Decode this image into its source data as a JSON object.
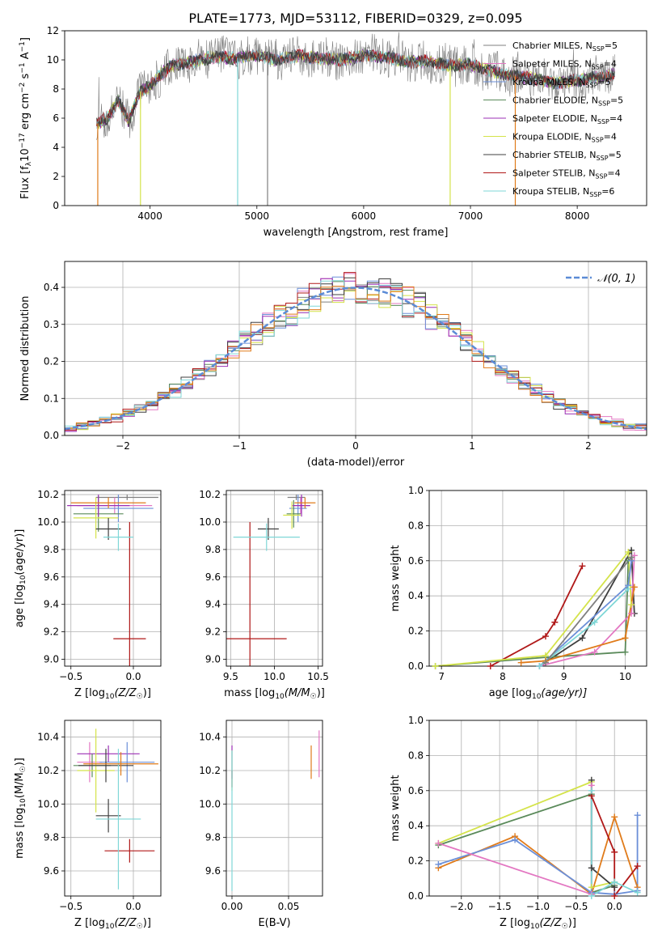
{
  "title": "PLATE=1773, MJD=53112, FIBERID=0329, z=0.095",
  "palette": {
    "chabrier_miles": "#7f7f7f",
    "salpeter_miles": "#e377c2",
    "kroupa_miles": "#6b8fd8",
    "chabrier_elodie": "#5a8a5a",
    "salpeter_elodie": "#9b30b5",
    "kroupa_elodie": "#d4e34a",
    "chabrier_stelib": "#3f3f3f",
    "salpeter_stelib": "#b01818",
    "kroupa_stelib": "#7fd7d7",
    "orange": "#e07b1a",
    "normal_curve": "#5b8bd6"
  },
  "legend_models": [
    {
      "label": "Chabrier MILES, N",
      "sub": "SSP",
      "suffix": "=5",
      "color": "#7f7f7f"
    },
    {
      "label": "Salpeter MILES, N",
      "sub": "SSP",
      "suffix": "=4",
      "color": "#e377c2"
    },
    {
      "label": "Kroupa MILES, N",
      "sub": "SSP",
      "suffix": "=5",
      "color": "#6b8fd8"
    },
    {
      "label": "Chabrier ELODIE, N",
      "sub": "SSP",
      "suffix": "=5",
      "color": "#5a8a5a"
    },
    {
      "label": "Salpeter ELODIE, N",
      "sub": "SSP",
      "suffix": "=4",
      "color": "#9b30b5"
    },
    {
      "label": "Kroupa ELODIE, N",
      "sub": "SSP",
      "suffix": "=4",
      "color": "#d4e34a"
    },
    {
      "label": "Chabrier STELIB, N",
      "sub": "SSP",
      "suffix": "=5",
      "color": "#3f3f3f"
    },
    {
      "label": "Salpeter STELIB, N",
      "sub": "SSP",
      "suffix": "=4",
      "color": "#b01818"
    },
    {
      "label": "Kroupa STELIB, N",
      "sub": "SSP",
      "suffix": "=6",
      "color": "#7fd7d7"
    }
  ],
  "chart_data": [
    {
      "id": "spectrum",
      "type": "line",
      "xlabel": "wavelength [Angstrom, rest frame]",
      "ylabel": "Flux [f",
      "ylabel_sub": "λ",
      "ylabel_rest": "10",
      "ylabel_exp": "−17",
      "ylabel_units": " erg cm",
      "ylabel_exp2": "−2",
      "ylabel_units2": " s",
      "ylabel_exp3": "−1",
      "ylabel_units3": " A",
      "ylabel_exp4": "−1",
      "ylabel_end": "]",
      "xlim": [
        3200,
        8650
      ],
      "ylim": [
        0,
        12
      ],
      "xticks": [
        "4000",
        "5000",
        "6000",
        "7000",
        "8000"
      ],
      "xtick_values": [
        4000,
        5000,
        6000,
        7000,
        8000
      ],
      "yticks": [
        "0",
        "2",
        "4",
        "6",
        "8",
        "10",
        "12"
      ],
      "ytick_values": [
        0,
        2,
        4,
        6,
        8,
        10,
        12
      ],
      "continuum": {
        "x": [
          3500,
          3600,
          3700,
          3800,
          3900,
          4000,
          4100,
          4200,
          4400,
          4600,
          4800,
          5000,
          5200,
          5400,
          5600,
          5800,
          6000,
          6200,
          6400,
          6600,
          6800,
          7000,
          7200,
          7400,
          7600,
          7800,
          8000,
          8200,
          8350
        ],
        "y": [
          5.6,
          6.0,
          7.2,
          5.8,
          7.8,
          8.2,
          9.0,
          9.6,
          9.9,
          10.2,
          10.1,
          10.3,
          10.0,
          10.3,
          10.1,
          10.0,
          10.3,
          10.2,
          9.9,
          9.9,
          9.6,
          9.7,
          9.2,
          8.9,
          8.7,
          8.4,
          8.6,
          8.8,
          9.0
        ]
      },
      "drops": [
        {
          "x": 3510,
          "to": 0
        },
        {
          "x": 3910,
          "to": 0
        },
        {
          "x": 4820,
          "to": 0
        },
        {
          "x": 5100,
          "to": 0
        },
        {
          "x": 6810,
          "to": 0
        },
        {
          "x": 7420,
          "to": 0
        }
      ]
    },
    {
      "id": "residuals",
      "type": "histogram",
      "xlabel": "(data-model)/error",
      "ylabel": "Normed distribution",
      "xlim": [
        -2.5,
        2.5
      ],
      "ylim": [
        0,
        0.47
      ],
      "xticks": [
        "−2",
        "−1",
        "0",
        "1",
        "2"
      ],
      "xtick_values": [
        -2,
        -1,
        0,
        1,
        2
      ],
      "yticks": [
        "0.0",
        "0.1",
        "0.2",
        "0.3",
        "0.4"
      ],
      "ytick_values": [
        0,
        0.1,
        0.2,
        0.3,
        0.4
      ],
      "bin_width": 0.1,
      "legend": "𝒩(0, 1)"
    },
    {
      "id": "age-z",
      "type": "errorbar",
      "xlabel": "Z [log",
      "xlabel_sub": "10",
      "xlabel_rest": "(Z/Z",
      "xlabel_sun": "☉",
      "xlabel_end": ")]",
      "ylabel": "age  [log",
      "ylabel_sub": "10",
      "ylabel_rest": "(age/yr)]",
      "xlim": [
        -0.55,
        0.22
      ],
      "ylim": [
        8.95,
        10.23
      ],
      "xticks": [
        "−0.5",
        "0.0"
      ],
      "xtick_values": [
        -0.5,
        0.0
      ],
      "yticks": [
        "9.0",
        "9.2",
        "9.4",
        "9.6",
        "9.8",
        "10.0",
        "10.2"
      ],
      "ytick_values": [
        9.0,
        9.2,
        9.4,
        9.6,
        9.8,
        10.0,
        10.2
      ],
      "points": [
        {
          "x": -0.05,
          "y": 10.18,
          "xerr": 0.25,
          "yerr": 0.02,
          "color": "#7f7f7f"
        },
        {
          "x": -0.15,
          "y": 10.12,
          "xerr": 0.3,
          "yerr": 0.06,
          "color": "#e377c2"
        },
        {
          "x": -0.12,
          "y": 10.1,
          "xerr": 0.28,
          "yerr": 0.1,
          "color": "#6b8fd8"
        },
        {
          "x": -0.28,
          "y": 10.06,
          "xerr": 0.2,
          "yerr": 0.13,
          "color": "#5a8a5a"
        },
        {
          "x": -0.28,
          "y": 10.12,
          "xerr": 0.25,
          "yerr": 0.08,
          "color": "#9b30b5"
        },
        {
          "x": -0.3,
          "y": 10.03,
          "xerr": 0.18,
          "yerr": 0.15,
          "color": "#d4e34a"
        },
        {
          "x": -0.2,
          "y": 9.95,
          "xerr": 0.1,
          "yerr": 0.08,
          "color": "#3f3f3f"
        },
        {
          "x": -0.03,
          "y": 9.15,
          "xerr": 0.13,
          "yerr": 0.85,
          "color": "#b01818"
        },
        {
          "x": -0.12,
          "y": 9.89,
          "xerr": 0.12,
          "yerr": 0.1,
          "color": "#7fd7d7"
        },
        {
          "x": -0.2,
          "y": 10.14,
          "xerr": 0.3,
          "yerr": 0.04,
          "color": "#e07b1a"
        }
      ]
    },
    {
      "id": "age-mass",
      "type": "errorbar",
      "xlabel": "mass [log",
      "xlabel_sub": "10",
      "xlabel_rest": "(M/M",
      "xlabel_sun": "☉",
      "xlabel_end": ")]",
      "xlim": [
        9.45,
        10.55
      ],
      "ylim": [
        8.95,
        10.23
      ],
      "xticks": [
        "9.5",
        "10.0",
        "10.5"
      ],
      "xtick_values": [
        9.5,
        10.0,
        10.5
      ],
      "yticks": [
        "9.0",
        "9.2",
        "9.4",
        "9.6",
        "9.8",
        "10.0",
        "10.2"
      ],
      "ytick_values": [
        9.0,
        9.2,
        9.4,
        9.6,
        9.8,
        10.0,
        10.2
      ],
      "points": [
        {
          "x": 10.25,
          "y": 10.18,
          "xerr": 0.1,
          "yerr": 0.02,
          "color": "#7f7f7f"
        },
        {
          "x": 10.3,
          "y": 10.12,
          "xerr": 0.1,
          "yerr": 0.06,
          "color": "#e377c2"
        },
        {
          "x": 10.27,
          "y": 10.1,
          "xerr": 0.1,
          "yerr": 0.1,
          "color": "#6b8fd8"
        },
        {
          "x": 10.22,
          "y": 10.06,
          "xerr": 0.08,
          "yerr": 0.1,
          "color": "#5a8a5a"
        },
        {
          "x": 10.31,
          "y": 10.12,
          "xerr": 0.1,
          "yerr": 0.08,
          "color": "#9b30b5"
        },
        {
          "x": 10.2,
          "y": 10.05,
          "xerr": 0.1,
          "yerr": 0.1,
          "color": "#d4e34a"
        },
        {
          "x": 9.93,
          "y": 9.95,
          "xerr": 0.12,
          "yerr": 0.08,
          "color": "#3f3f3f"
        },
        {
          "x": 9.72,
          "y": 9.15,
          "xerr": 0.42,
          "yerr": 0.85,
          "color": "#b01818"
        },
        {
          "x": 9.91,
          "y": 9.89,
          "xerr": 0.38,
          "yerr": 0.1,
          "color": "#7fd7d7"
        },
        {
          "x": 10.35,
          "y": 10.14,
          "xerr": 0.12,
          "yerr": 0.04,
          "color": "#e07b1a"
        }
      ]
    },
    {
      "id": "mass-weight-age",
      "type": "line",
      "xlabel": "age  [log",
      "xlabel_sub": "10",
      "xlabel_rest": "(age/yr)]",
      "ylabel": "mass weight",
      "xlim": [
        6.8,
        10.35
      ],
      "ylim": [
        0,
        1.0
      ],
      "xticks": [
        "7",
        "8",
        "9",
        "10"
      ],
      "xtick_values": [
        7,
        8,
        9,
        10
      ],
      "yticks": [
        "0.0",
        "0.2",
        "0.4",
        "0.6",
        "0.8",
        "1.0"
      ],
      "ytick_values": [
        0,
        0.2,
        0.4,
        0.6,
        0.8,
        1.0
      ],
      "series": [
        {
          "color": "#b01818",
          "x": [
            7.8,
            8.7,
            8.85,
            9.3
          ],
          "y": [
            0.0,
            0.17,
            0.25,
            0.57
          ]
        },
        {
          "color": "#3f3f3f",
          "x": [
            8.6,
            9.3,
            10.1,
            10.15
          ],
          "y": [
            0.0,
            0.16,
            0.66,
            0.3
          ]
        },
        {
          "color": "#5a8a5a",
          "x": [
            6.9,
            8.7,
            10.0,
            10.05
          ],
          "y": [
            0.0,
            0.05,
            0.08,
            0.6
          ]
        },
        {
          "color": "#d4e34a",
          "x": [
            6.9,
            8.7,
            10.05,
            10.1
          ],
          "y": [
            0.0,
            0.06,
            0.65,
            0.35
          ]
        },
        {
          "color": "#6b8fd8",
          "x": [
            8.6,
            10.05,
            10.1
          ],
          "y": [
            0.0,
            0.46,
            0.6
          ]
        },
        {
          "color": "#e377c2",
          "x": [
            8.6,
            9.5,
            10.1,
            10.15
          ],
          "y": [
            0.0,
            0.08,
            0.3,
            0.63
          ]
        },
        {
          "color": "#e07b1a",
          "x": [
            8.3,
            8.7,
            10.0,
            10.15
          ],
          "y": [
            0.02,
            0.03,
            0.16,
            0.45
          ]
        },
        {
          "color": "#7fd7d7",
          "x": [
            8.6,
            9.5,
            10.05
          ],
          "y": [
            0.0,
            0.25,
            0.44
          ]
        },
        {
          "color": "#7f7f7f",
          "x": [
            8.7,
            10.1
          ],
          "y": [
            0.02,
            0.62
          ]
        }
      ]
    },
    {
      "id": "mass-z",
      "type": "errorbar",
      "xlabel": "Z [log",
      "xlabel_sub": "10",
      "xlabel_rest": "(Z/Z",
      "xlabel_sun": "☉",
      "xlabel_end": ")]",
      "ylabel": "mass [log",
      "ylabel_sub": "10",
      "ylabel_rest": "(M/M",
      "ylabel_sun": "☉",
      "ylabel_end": ")]",
      "xlim": [
        -0.55,
        0.22
      ],
      "ylim": [
        9.45,
        10.5
      ],
      "xticks": [
        "−0.5",
        "0.0"
      ],
      "xtick_values": [
        -0.5,
        0.0
      ],
      "yticks": [
        "9.6",
        "9.8",
        "10.0",
        "10.2",
        "10.4"
      ],
      "ytick_values": [
        9.6,
        9.8,
        10.0,
        10.2,
        10.4
      ],
      "points": [
        {
          "x": -0.35,
          "y": 10.25,
          "xerr": 0.1,
          "yerr": 0.12,
          "color": "#e377c2"
        },
        {
          "x": -0.2,
          "y": 10.3,
          "xerr": 0.25,
          "yerr": 0.05,
          "color": "#9b30b5"
        },
        {
          "x": -0.05,
          "y": 10.25,
          "xerr": 0.22,
          "yerr": 0.12,
          "color": "#6b8fd8"
        },
        {
          "x": -0.33,
          "y": 10.23,
          "xerr": 0.15,
          "yerr": 0.07,
          "color": "#5a8a5a"
        },
        {
          "x": -0.3,
          "y": 10.2,
          "xerr": 0.15,
          "yerr": 0.25,
          "color": "#d4e34a"
        },
        {
          "x": -0.22,
          "y": 10.23,
          "xerr": 0.22,
          "yerr": 0.1,
          "color": "#3f3f3f"
        },
        {
          "x": -0.2,
          "y": 9.93,
          "xerr": 0.1,
          "yerr": 0.1,
          "color": "#3f3f3f"
        },
        {
          "x": -0.03,
          "y": 9.72,
          "xerr": 0.2,
          "yerr": 0.07,
          "color": "#b01818"
        },
        {
          "x": -0.12,
          "y": 9.91,
          "xerr": 0.18,
          "yerr": 0.42,
          "color": "#7fd7d7"
        },
        {
          "x": -0.1,
          "y": 10.24,
          "xerr": 0.3,
          "yerr": 0.07,
          "color": "#e07b1a"
        }
      ]
    },
    {
      "id": "mass-ebv",
      "type": "errorbar",
      "xlabel": "E(B-V)",
      "xlim": [
        -0.005,
        0.08
      ],
      "ylim": [
        9.45,
        10.5
      ],
      "xticks": [
        "0.00",
        "0.05"
      ],
      "xtick_values": [
        0.0,
        0.05
      ],
      "yticks": [
        "9.6",
        "9.8",
        "10.0",
        "10.2",
        "10.4"
      ],
      "ytick_values": [
        9.6,
        9.8,
        10.0,
        10.2,
        10.4
      ],
      "points": [
        {
          "x": 0.0,
          "y": 10.25,
          "xerr": 0.0,
          "yerr": 0.1,
          "color": "#9b30b5"
        },
        {
          "x": 0.0,
          "y": 10.2,
          "xerr": 0.0,
          "yerr": 0.12,
          "color": "#d4e34a"
        },
        {
          "x": 0.0,
          "y": 10.15,
          "xerr": 0.0,
          "yerr": 0.05,
          "color": "#b01818"
        },
        {
          "x": 0.0,
          "y": 9.9,
          "xerr": 0.0,
          "yerr": 0.42,
          "color": "#7fd7d7"
        },
        {
          "x": 0.07,
          "y": 10.25,
          "xerr": 0.0,
          "yerr": 0.1,
          "color": "#e07b1a"
        },
        {
          "x": 0.077,
          "y": 10.3,
          "xerr": 0.0,
          "yerr": 0.14,
          "color": "#e377c2"
        }
      ]
    },
    {
      "id": "mass-weight-z",
      "type": "line",
      "xlabel": "Z [log",
      "xlabel_sub": "10",
      "xlabel_rest": "(Z/Z",
      "xlabel_sun": "☉",
      "xlabel_end": ")]",
      "ylabel": "mass weight",
      "xlim": [
        -2.42,
        0.42
      ],
      "ylim": [
        0,
        1.0
      ],
      "xticks": [
        "−2.0",
        "−1.5",
        "−1.0",
        "−0.5",
        "0.0"
      ],
      "xtick_values": [
        -2.0,
        -1.5,
        -1.0,
        -0.5,
        0.0
      ],
      "yticks": [
        "0.0",
        "0.2",
        "0.4",
        "0.6",
        "0.8",
        "1.0"
      ],
      "ytick_values": [
        0,
        0.2,
        0.4,
        0.6,
        0.8,
        1.0
      ],
      "series": [
        {
          "color": "#d4e34a",
          "x": [
            -2.3,
            -0.3,
            -0.3,
            0.0
          ],
          "y": [
            0.3,
            0.65,
            0.05,
            0.08
          ]
        },
        {
          "color": "#5a8a5a",
          "x": [
            -2.3,
            -0.3,
            -0.3,
            0.0
          ],
          "y": [
            0.29,
            0.58,
            0.02,
            0.06
          ]
        },
        {
          "color": "#3f3f3f",
          "x": [
            -0.3,
            -0.3,
            0.0
          ],
          "y": [
            0.66,
            0.16,
            0.05
          ]
        },
        {
          "color": "#e07b1a",
          "x": [
            -2.3,
            -1.3,
            -0.3,
            0.0,
            0.3
          ],
          "y": [
            0.16,
            0.34,
            0.01,
            0.45,
            0.05
          ]
        },
        {
          "color": "#6b8fd8",
          "x": [
            -2.3,
            -1.3,
            -0.3,
            0.0,
            0.3,
            0.3
          ],
          "y": [
            0.18,
            0.32,
            0.02,
            0.01,
            0.03,
            0.46
          ]
        },
        {
          "color": "#e377c2",
          "x": [
            -2.3,
            -0.3,
            -0.3
          ],
          "y": [
            0.3,
            0.01,
            0.63
          ]
        },
        {
          "color": "#b01818",
          "x": [
            -0.3,
            0.0,
            0.0,
            0.3
          ],
          "y": [
            0.57,
            0.25,
            0.0,
            0.17
          ]
        },
        {
          "color": "#7fd7d7",
          "x": [
            -0.3,
            -0.3,
            0.0,
            0.3
          ],
          "y": [
            0.6,
            0.0,
            0.08,
            0.02
          ]
        }
      ]
    }
  ]
}
